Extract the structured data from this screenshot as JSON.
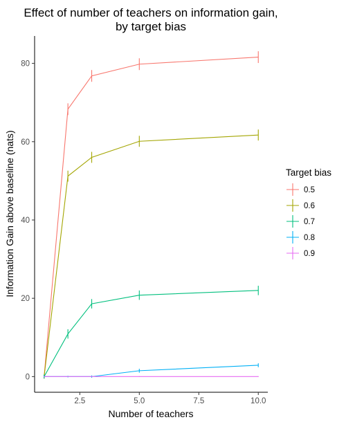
{
  "chart_data": {
    "type": "line",
    "title_lines": [
      "Effect of number of teachers on information gain,",
      "by target bias"
    ],
    "xlabel": "Number of teachers",
    "ylabel": "Information Gain above baseline (nats)",
    "xlim": [
      0.6,
      10.4
    ],
    "ylim": [
      -4,
      87
    ],
    "xticks": [
      2.5,
      5.0,
      7.5,
      10.0
    ],
    "xtick_labels": [
      "2.5",
      "5.0",
      "7.5",
      "10.0"
    ],
    "yticks": [
      0,
      20,
      40,
      60,
      80
    ],
    "ytick_labels": [
      "0",
      "20",
      "40",
      "60",
      "80"
    ],
    "grid": false,
    "legend": {
      "title": "Target bias",
      "placement": "right"
    },
    "x": [
      1,
      2,
      3,
      5,
      10
    ],
    "series": [
      {
        "name": "0.5",
        "color": "#F8766D",
        "values": [
          0,
          68.3,
          76.8,
          79.8,
          81.6
        ],
        "errors": [
          0.5,
          1.5,
          1.5,
          1.5,
          1.5
        ]
      },
      {
        "name": "0.6",
        "color": "#A3A500",
        "values": [
          0,
          51.2,
          56.0,
          60.1,
          61.7
        ],
        "errors": [
          0.5,
          1.4,
          1.4,
          1.4,
          1.4
        ]
      },
      {
        "name": "0.7",
        "color": "#00BF7D",
        "values": [
          0,
          10.9,
          18.6,
          20.8,
          22.0
        ],
        "errors": [
          0.5,
          1.2,
          1.2,
          1.2,
          1.2
        ]
      },
      {
        "name": "0.8",
        "color": "#00B0F6",
        "values": [
          0,
          0,
          0,
          1.5,
          2.9
        ],
        "errors": [
          0.2,
          0.2,
          0.3,
          0.5,
          0.5
        ]
      },
      {
        "name": "0.9",
        "color": "#E76BF3",
        "values": [
          0,
          0,
          0,
          0,
          0
        ],
        "errors": [
          0.1,
          0.1,
          0.1,
          0.1,
          0.1
        ]
      }
    ]
  }
}
